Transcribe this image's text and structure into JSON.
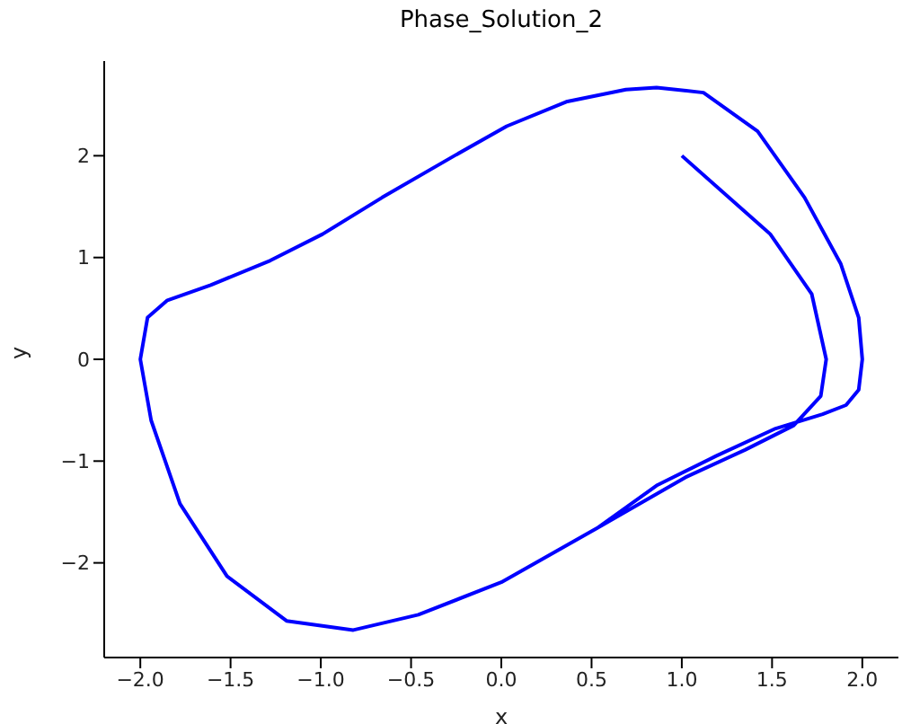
{
  "chart_data": {
    "type": "line",
    "title": "Phase_Solution_2",
    "xlabel": "x",
    "ylabel": "y",
    "xlim": [
      -2.2,
      2.2
    ],
    "ylim": [
      -2.93,
      2.93
    ],
    "xticks": [
      {
        "value": -2,
        "label": "−2.0"
      },
      {
        "value": -1.5,
        "label": "−1.5"
      },
      {
        "value": -1,
        "label": "−1.0"
      },
      {
        "value": -0.5,
        "label": "−0.5"
      },
      {
        "value": 0,
        "label": "0.0"
      },
      {
        "value": 0.5,
        "label": "0.5"
      },
      {
        "value": 1,
        "label": "1.0"
      },
      {
        "value": 1.5,
        "label": "1.5"
      },
      {
        "value": 2,
        "label": "2.0"
      }
    ],
    "yticks": [
      {
        "value": -2,
        "label": "−2"
      },
      {
        "value": -1,
        "label": "−1"
      },
      0,
      1,
      2
    ],
    "grid": false,
    "legend": false,
    "marker": "none",
    "line_style": "solid",
    "series": [
      {
        "color": "#0000ff",
        "x": [
          1.0,
          1.49,
          1.72,
          1.8,
          1.77,
          1.62,
          1.35,
          1.02,
          0.53,
          0.0,
          -0.46,
          -0.82,
          -1.19,
          -1.52,
          -1.78,
          -1.94,
          -2.0,
          -1.96,
          -1.85,
          -1.61,
          -1.28,
          -0.99,
          -0.66,
          -0.26,
          0.03,
          0.36,
          0.69,
          0.86,
          1.12,
          1.42,
          1.68,
          1.88,
          1.98,
          2.0,
          1.98,
          1.91,
          1.78,
          1.52,
          1.19,
          0.86,
          0.53,
          0.0,
          -0.46,
          -0.82,
          -1.19,
          -1.52,
          -1.78,
          -1.94,
          -2.0
        ],
        "values": [
          2.0,
          1.23,
          0.64,
          0.0,
          -0.36,
          -0.65,
          -0.89,
          -1.16,
          -1.66,
          -2.19,
          -2.51,
          -2.66,
          -2.57,
          -2.13,
          -1.42,
          -0.6,
          0.0,
          0.41,
          0.58,
          0.73,
          0.97,
          1.23,
          1.59,
          2.0,
          2.29,
          2.53,
          2.65,
          2.67,
          2.62,
          2.24,
          1.59,
          0.94,
          0.41,
          0.0,
          -0.3,
          -0.45,
          -0.54,
          -0.68,
          -0.95,
          -1.24,
          -1.66,
          -2.19,
          -2.51,
          -2.66,
          -2.57,
          -2.13,
          -1.42,
          -0.6,
          0.0
        ]
      }
    ]
  }
}
